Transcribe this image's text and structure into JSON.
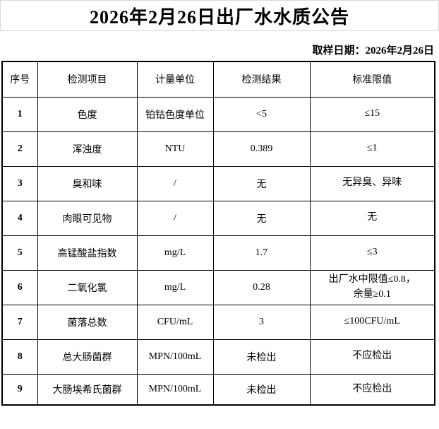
{
  "title": "2026年2月26日出厂水水质公告",
  "sampling_date": "取样日期：2026年2月26日",
  "table": {
    "headers": [
      "序号",
      "检测项目",
      "计量单位",
      "检测结果",
      "标准限值"
    ],
    "rows": [
      {
        "no": "1",
        "item": "色度",
        "unit": "铂钴色度单位",
        "result": "<5",
        "limit": "≤15"
      },
      {
        "no": "2",
        "item": "浑浊度",
        "unit": "NTU",
        "result": "0.389",
        "limit": "≤1"
      },
      {
        "no": "3",
        "item": "臭和味",
        "unit": "/",
        "result": "无",
        "limit": "无异臭、异味"
      },
      {
        "no": "4",
        "item": "肉眼可见物",
        "unit": "/",
        "result": "无",
        "limit": "无"
      },
      {
        "no": "5",
        "item": "高锰酸盐指数",
        "unit": "mg/L",
        "result": "1.7",
        "limit": "≤3"
      },
      {
        "no": "6",
        "item": "二氧化氯",
        "unit": "mg/L",
        "result": "0.28",
        "limit": "出厂水中限值≤0.8，\n余量≥0.1"
      },
      {
        "no": "7",
        "item": "菌落总数",
        "unit": "CFU/mL",
        "result": "3",
        "limit": "≤100CFU/mL"
      },
      {
        "no": "8",
        "item": "总大肠菌群",
        "unit": "MPN/100mL",
        "result": "未检出",
        "limit": "不应检出"
      },
      {
        "no": "9",
        "item": "大肠埃希氏菌群",
        "unit": "MPN/100mL",
        "result": "未检出",
        "limit": "不应检出"
      }
    ]
  }
}
